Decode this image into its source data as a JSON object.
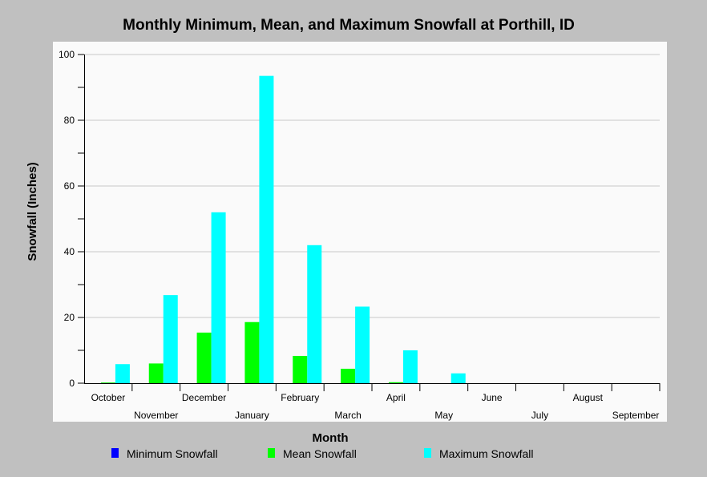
{
  "chart_data": {
    "type": "bar",
    "title": "Monthly Minimum, Mean, and Maximum Snowfall at Porthill, ID",
    "xlabel": "Month",
    "ylabel": "Snowfall (Inches)",
    "ylim": [
      0,
      100
    ],
    "yticks": [
      0,
      20,
      40,
      60,
      80,
      100
    ],
    "grid": true,
    "legend_position": "bottom",
    "categories": [
      "October",
      "November",
      "December",
      "January",
      "February",
      "March",
      "April",
      "May",
      "June",
      "July",
      "August",
      "September"
    ],
    "series": [
      {
        "name": "Minimum Snowfall",
        "color": "#0000ff",
        "values": [
          0,
          0,
          0,
          0,
          0,
          0,
          0,
          0,
          0,
          0,
          0,
          0
        ]
      },
      {
        "name": "Mean Snowfall",
        "color": "#00ff00",
        "values": [
          0.2,
          6.0,
          15.4,
          18.6,
          8.3,
          4.4,
          0.3,
          0,
          0,
          0,
          0,
          0
        ]
      },
      {
        "name": "Maximum Snowfall",
        "color": "#00ffff",
        "values": [
          5.8,
          26.8,
          52.0,
          93.5,
          42.0,
          23.3,
          10.0,
          3.0,
          0,
          0,
          0,
          0
        ]
      }
    ]
  }
}
